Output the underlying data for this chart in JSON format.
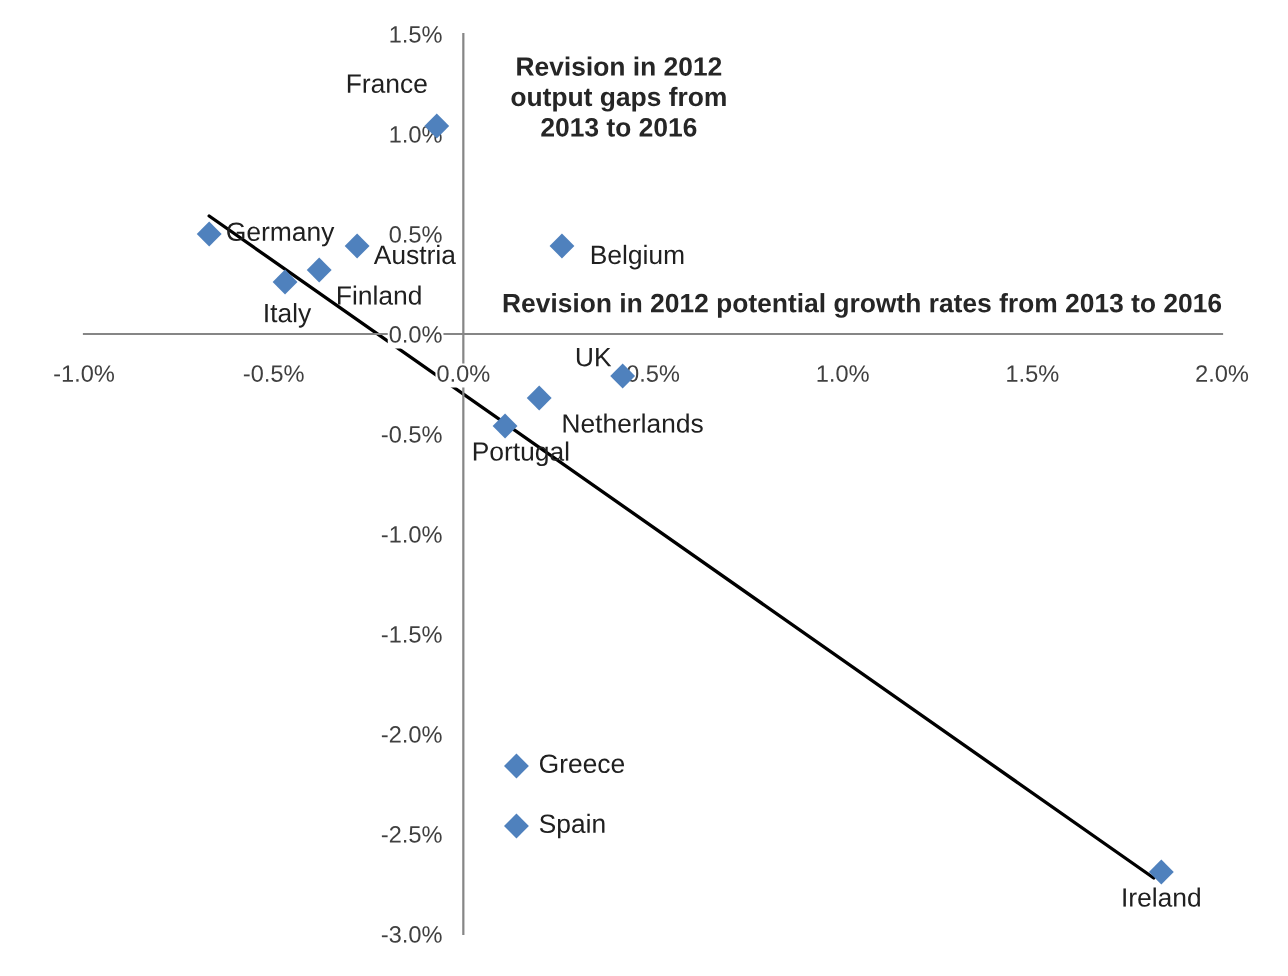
{
  "chart_data": {
    "type": "scatter",
    "xlabel": "Revision in 2012 potential growth rates from 2013 to 2016",
    "ylabel": "Revision in 2012 output gaps from 2013 to 2016",
    "marker": "diamond",
    "grid": false,
    "legend": false,
    "xlim": [
      -1.0,
      2.0
    ],
    "ylim": [
      -3.0,
      1.5
    ],
    "xticks": [
      {
        "value": -1.0,
        "label": "-1.0%"
      },
      {
        "value": -0.5,
        "label": "-0.5%"
      },
      {
        "value": 0.0,
        "label": "0.0%"
      },
      {
        "value": 0.5,
        "label": "0.5%"
      },
      {
        "value": 1.0,
        "label": "1.0%"
      },
      {
        "value": 1.5,
        "label": "1.5%"
      },
      {
        "value": 2.0,
        "label": "2.0%"
      }
    ],
    "yticks": [
      {
        "value": -3.0,
        "label": "-3.0%"
      },
      {
        "value": -2.5,
        "label": "-2.5%"
      },
      {
        "value": -2.0,
        "label": "-2.0%"
      },
      {
        "value": -1.5,
        "label": "-1.5%"
      },
      {
        "value": -1.0,
        "label": "-1.0%"
      },
      {
        "value": -0.5,
        "label": "-0.5%"
      },
      {
        "value": 0.0,
        "label": "0.0%"
      },
      {
        "value": 0.5,
        "label": "0.5%"
      },
      {
        "value": 1.0,
        "label": "1.0%"
      },
      {
        "value": 1.5,
        "label": "1.5%"
      }
    ],
    "series": [
      {
        "color": "#4f81bd",
        "x": [
          -0.07,
          -0.67,
          -0.28,
          -0.38,
          -0.47,
          0.26,
          0.42,
          0.2,
          0.11,
          0.14,
          0.14,
          1.84
        ],
        "values": [
          1.04,
          0.5,
          0.44,
          0.32,
          0.26,
          0.44,
          -0.21,
          -0.32,
          -0.46,
          -2.16,
          -2.46,
          -2.69
        ]
      },
      {
        "type": "line",
        "color": "#000000",
        "marker": "none",
        "x": [
          -0.67,
          1.82
        ],
        "values": [
          0.59,
          -2.72
        ]
      }
    ],
    "annotations": [
      {
        "text": "France",
        "x": -0.07,
        "y": 1.04
      },
      {
        "text": "Germany",
        "x": -0.67,
        "y": 0.5
      },
      {
        "text": "Austria",
        "x": -0.28,
        "y": 0.44
      },
      {
        "text": "Finland",
        "x": -0.38,
        "y": 0.32
      },
      {
        "text": "Italy",
        "x": -0.47,
        "y": 0.26
      },
      {
        "text": "Belgium",
        "x": 0.26,
        "y": 0.44
      },
      {
        "text": "UK",
        "x": 0.42,
        "y": -0.21
      },
      {
        "text": "Netherlands",
        "x": 0.2,
        "y": -0.32
      },
      {
        "text": "Portugal",
        "x": 0.11,
        "y": -0.46
      },
      {
        "text": "Greece",
        "x": 0.14,
        "y": -2.16
      },
      {
        "text": "Spain",
        "x": 0.14,
        "y": -2.46
      },
      {
        "text": "Ireland",
        "x": 1.84,
        "y": -2.69
      }
    ]
  }
}
